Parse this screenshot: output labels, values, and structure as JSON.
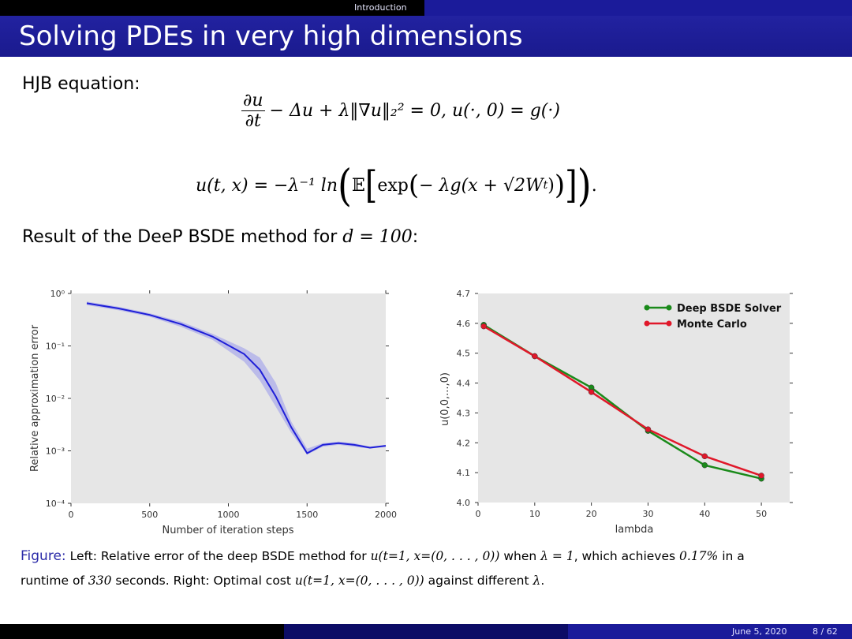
{
  "header": {
    "section": "Introduction",
    "title": "Solving PDEs in very high dimensions"
  },
  "body": {
    "hjb_label": "HJB equation:",
    "eq1": {
      "frac_num": "∂u",
      "frac_den": "∂t",
      "rest": "− Δu + λ‖∇u‖₂² = 0,    u(·, 0) = g(·)"
    },
    "eq2": {
      "lhs": "u(t, x) = −λ⁻¹ ln",
      "expect": "𝔼",
      "exp": "exp",
      "inner": "− λg(x + √2W",
      "sub_t": "t",
      "close": ")",
      "end": "."
    },
    "result_text": "Result of the DeeP BSDE method for",
    "result_math": "d = 100",
    "result_colon": ":"
  },
  "caption": {
    "figure_label": "Figure:",
    "line1_a": "Left: Relative error of the deep BSDE method for",
    "line1_m1": "u(t=1, x=(0, . . . , 0))",
    "line1_b": "when",
    "line1_m2": "λ = 1",
    "line1_c": ", which achieves",
    "line1_m3": "0.17%",
    "line1_d": "in a",
    "line2_a": "runtime of",
    "line2_m1": "330",
    "line2_b": "seconds. Right: Optimal cost",
    "line2_m2": "u(t=1, x=(0, . . . , 0))",
    "line2_c": "against different",
    "line2_m3": "λ",
    "line2_end": "."
  },
  "footer": {
    "date": "June 5, 2020",
    "page": "8 / 62"
  },
  "colors": {
    "nav_bar": "#1b1b9a",
    "title_bar": "#1f1f9a",
    "figure_label": "#2a2aa8",
    "left_line": "#1f1fd8",
    "deep_bsde": "#1a8a1a",
    "monte_carlo": "#e0182a",
    "plot_bg": "#e6e6e6"
  },
  "chart_data": [
    {
      "type": "line",
      "title": "",
      "xlabel": "Number of iteration steps",
      "ylabel": "Relative approximation error",
      "xlim": [
        0,
        2000
      ],
      "ylim_log10": [
        -4,
        0
      ],
      "yscale": "log",
      "xticks": [
        "0",
        "500",
        "1000",
        "1500",
        "2000"
      ],
      "yticks": [
        "10⁰",
        "10⁻¹",
        "10⁻²",
        "10⁻³",
        "10⁻⁴"
      ],
      "grid": false,
      "series": [
        {
          "x": [
            100,
            300,
            500,
            700,
            900,
            1100,
            1200,
            1300,
            1400,
            1500,
            1600,
            1700,
            1800,
            1900,
            2000
          ],
          "y": [
            0.65,
            0.52,
            0.39,
            0.26,
            0.15,
            0.07,
            0.035,
            0.011,
            0.0028,
            0.0009,
            0.0013,
            0.0014,
            0.0013,
            0.00115,
            0.00125
          ],
          "y_band_low": [
            0.6,
            0.48,
            0.36,
            0.23,
            0.13,
            0.05,
            0.022,
            0.007,
            0.0022,
            0.00085,
            0.0012,
            0.0013,
            0.0012,
            0.0011,
            0.0012
          ],
          "y_band_high": [
            0.7,
            0.56,
            0.42,
            0.29,
            0.17,
            0.09,
            0.06,
            0.02,
            0.0036,
            0.0011,
            0.0014,
            0.0015,
            0.0014,
            0.0012,
            0.0013
          ]
        }
      ]
    },
    {
      "type": "line",
      "title": "",
      "xlabel": "lambda",
      "ylabel": "u(0,0,...,0)",
      "xlim": [
        0,
        55
      ],
      "ylim": [
        4.0,
        4.7
      ],
      "xticks": [
        0,
        10,
        20,
        30,
        40,
        50
      ],
      "yticks": [
        "4.0",
        "4.1",
        "4.2",
        "4.3",
        "4.4",
        "4.5",
        "4.6",
        "4.7"
      ],
      "grid": false,
      "legend": "top-right",
      "series": [
        {
          "name": "Deep BSDE Solver",
          "x": [
            1,
            10,
            20,
            30,
            40,
            50
          ],
          "y": [
            4.595,
            4.49,
            4.385,
            4.24,
            4.125,
            4.08
          ]
        },
        {
          "name": "Monte Carlo",
          "x": [
            1,
            10,
            20,
            30,
            40,
            50
          ],
          "y": [
            4.59,
            4.49,
            4.37,
            4.245,
            4.155,
            4.09
          ]
        }
      ]
    }
  ]
}
